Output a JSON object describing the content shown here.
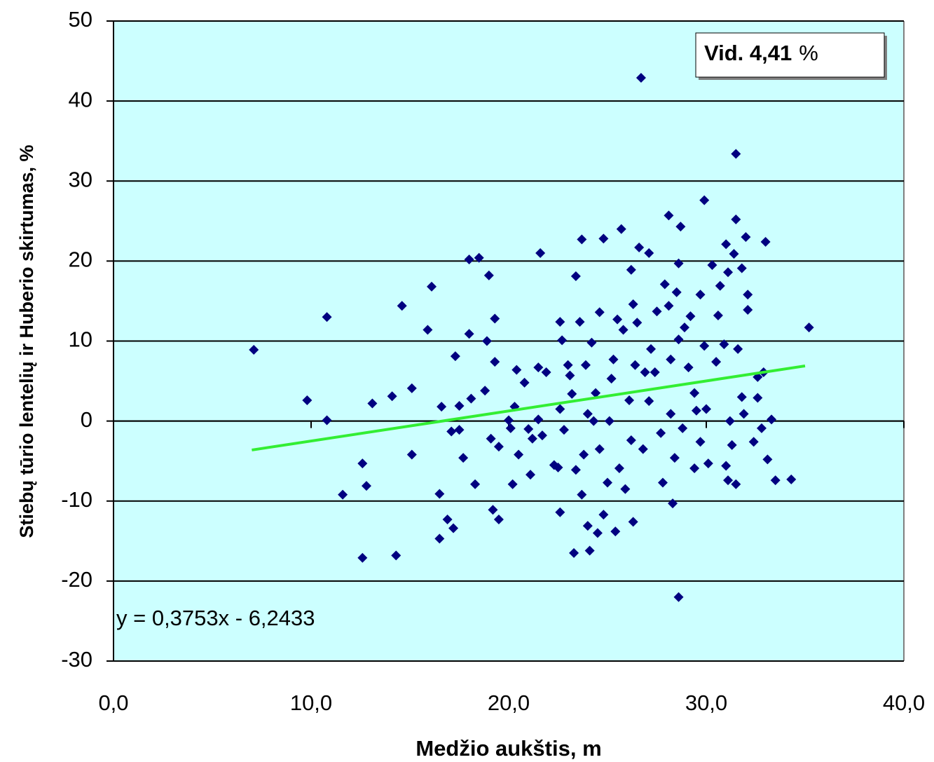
{
  "chart_data": {
    "type": "scatter",
    "x_label": "Medžio aukštis, m",
    "y_label": "Stiebų tūrio lentelių ir Huberio skirtumas, %",
    "annotation": [
      "Vid. 4,41",
      "%"
    ],
    "trendline_label": "y = 0,3753x - 6,2433",
    "trendline": {
      "x": [
        7,
        35
      ],
      "values": [
        -3.62,
        6.89
      ],
      "color": "#33ee33"
    },
    "color": "#000080",
    "background": "#ccffff",
    "grid": true,
    "xlim": [
      0,
      40
    ],
    "ylim": [
      -30,
      50
    ],
    "xticks": [
      {
        "value": 0,
        "label": "0,0"
      },
      {
        "value": 10,
        "label": "10,0"
      },
      {
        "value": 20,
        "label": "20,0"
      },
      {
        "value": 30,
        "label": "30,0"
      },
      {
        "value": 40,
        "label": "40,0"
      }
    ],
    "yticks": [
      -30,
      -20,
      -10,
      0,
      10,
      20,
      30,
      40,
      50
    ],
    "x": [
      7.1,
      9.8,
      10.8,
      10.8,
      11.6,
      12.6,
      12.6,
      12.8,
      13.1,
      14.1,
      14.3,
      14.6,
      15.1,
      15.1,
      15.9,
      16.1,
      16.5,
      16.5,
      16.6,
      16.9,
      17.1,
      17.2,
      17.3,
      17.5,
      17.5,
      17.7,
      18.0,
      18.0,
      18.1,
      18.3,
      18.5,
      18.8,
      18.9,
      19.0,
      19.1,
      19.2,
      19.3,
      19.3,
      19.5,
      19.5,
      20.0,
      20.1,
      20.2,
      20.3,
      20.4,
      20.5,
      20.8,
      21.0,
      21.1,
      21.2,
      21.5,
      21.5,
      21.6,
      21.7,
      21.9,
      22.3,
      22.5,
      22.7,
      22.6,
      22.6,
      22.6,
      22.8,
      23.0,
      23.1,
      23.2,
      23.3,
      23.4,
      23.4,
      23.6,
      23.7,
      23.7,
      23.8,
      23.9,
      24.0,
      24.0,
      24.1,
      24.2,
      24.3,
      24.4,
      24.5,
      24.6,
      24.6,
      24.8,
      24.8,
      25.0,
      25.1,
      25.2,
      25.3,
      25.4,
      25.5,
      25.6,
      25.7,
      25.8,
      25.9,
      26.1,
      26.2,
      26.2,
      26.3,
      26.3,
      26.4,
      26.5,
      26.6,
      26.7,
      26.8,
      26.9,
      27.1,
      27.1,
      27.2,
      27.4,
      27.5,
      27.7,
      27.8,
      27.9,
      28.1,
      28.1,
      28.2,
      28.2,
      28.3,
      28.4,
      28.5,
      28.6,
      28.6,
      28.6,
      28.7,
      28.8,
      28.9,
      29.1,
      29.2,
      29.4,
      29.4,
      29.5,
      29.7,
      29.7,
      29.9,
      29.9,
      30.0,
      30.1,
      30.3,
      30.5,
      30.6,
      30.7,
      30.9,
      31.0,
      31.0,
      31.1,
      31.1,
      31.2,
      31.3,
      31.4,
      31.5,
      31.5,
      31.5,
      31.6,
      31.8,
      31.8,
      31.9,
      32.0,
      32.1,
      32.1,
      32.4,
      32.6,
      32.6,
      32.8,
      32.9,
      33.0,
      33.1,
      33.3,
      33.5,
      34.3,
      35.2
    ],
    "values": [
      8.9,
      2.6,
      13.0,
      0.1,
      -9.2,
      -5.3,
      -17.1,
      -8.1,
      2.2,
      3.1,
      -16.8,
      14.4,
      4.1,
      -4.2,
      11.4,
      16.8,
      -9.1,
      -14.7,
      1.8,
      -12.3,
      -1.3,
      -13.4,
      8.1,
      1.9,
      -1.1,
      -4.6,
      10.9,
      20.2,
      2.8,
      -7.9,
      20.4,
      3.8,
      10.0,
      18.2,
      -2.2,
      -11.1,
      7.4,
      12.8,
      -12.3,
      -3.2,
      0.1,
      -0.9,
      -7.9,
      1.8,
      6.4,
      -4.2,
      4.8,
      -1.0,
      -6.7,
      -2.2,
      0.2,
      6.7,
      21.0,
      -1.8,
      6.1,
      -5.5,
      -5.8,
      10.1,
      12.4,
      1.5,
      -11.4,
      -1.1,
      7.0,
      5.7,
      3.4,
      -16.5,
      18.1,
      -6.1,
      12.4,
      22.7,
      -9.2,
      -4.2,
      7.0,
      -13.1,
      0.9,
      -16.2,
      9.8,
      0.0,
      3.5,
      -14.0,
      13.6,
      -3.5,
      -11.7,
      22.8,
      -7.7,
      0.0,
      5.3,
      7.7,
      -13.8,
      12.7,
      -5.9,
      24.0,
      11.4,
      -8.5,
      2.6,
      -2.4,
      18.9,
      -12.6,
      14.6,
      7.0,
      12.3,
      21.7,
      42.9,
      -3.5,
      6.1,
      2.5,
      21.0,
      9.0,
      6.1,
      13.7,
      -1.5,
      -7.7,
      17.1,
      25.7,
      14.4,
      7.7,
      0.9,
      -10.3,
      -4.6,
      16.1,
      19.7,
      -22.0,
      10.2,
      24.3,
      -0.9,
      11.7,
      6.7,
      13.1,
      3.5,
      -5.9,
      1.3,
      15.8,
      -2.6,
      27.6,
      9.4,
      1.5,
      -5.3,
      19.5,
      7.4,
      13.2,
      16.9,
      9.6,
      22.1,
      -5.6,
      18.6,
      -7.4,
      0.0,
      -3.0,
      20.9,
      33.4,
      -7.9,
      25.2,
      9.0,
      3.0,
      19.1,
      0.9,
      23.0,
      15.8,
      13.9,
      -2.6,
      5.5,
      2.9,
      -0.9,
      6.1,
      22.4,
      -4.8,
      0.2,
      -7.4,
      -7.3,
      11.7
    ]
  }
}
